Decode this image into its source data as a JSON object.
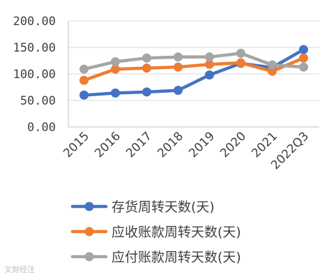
{
  "chart_data": {
    "type": "line",
    "categories": [
      "2015",
      "2016",
      "2017",
      "2018",
      "2019",
      "2020",
      "2021",
      "2022Q3"
    ],
    "series": [
      {
        "name": "存货周转天数(天)",
        "color": "#4472C4",
        "values": [
          60,
          64,
          66,
          69,
          98,
          120,
          112,
          146
        ]
      },
      {
        "name": "应收账款周转天数(天)",
        "color": "#ED7D31",
        "values": [
          88,
          109,
          111,
          113,
          118,
          121,
          105,
          130
        ]
      },
      {
        "name": "应付账款周转天数(天)",
        "color": "#A5A5A5",
        "values": [
          109,
          123,
          130,
          132,
          132,
          139,
          117,
          113
        ]
      }
    ],
    "y_ticks": [
      "0.00",
      "50.00",
      "100.00",
      "150.00",
      "200.00"
    ],
    "ylim": [
      0,
      200
    ],
    "grid": true,
    "legend_position": "bottom"
  },
  "watermark": "文財经注"
}
